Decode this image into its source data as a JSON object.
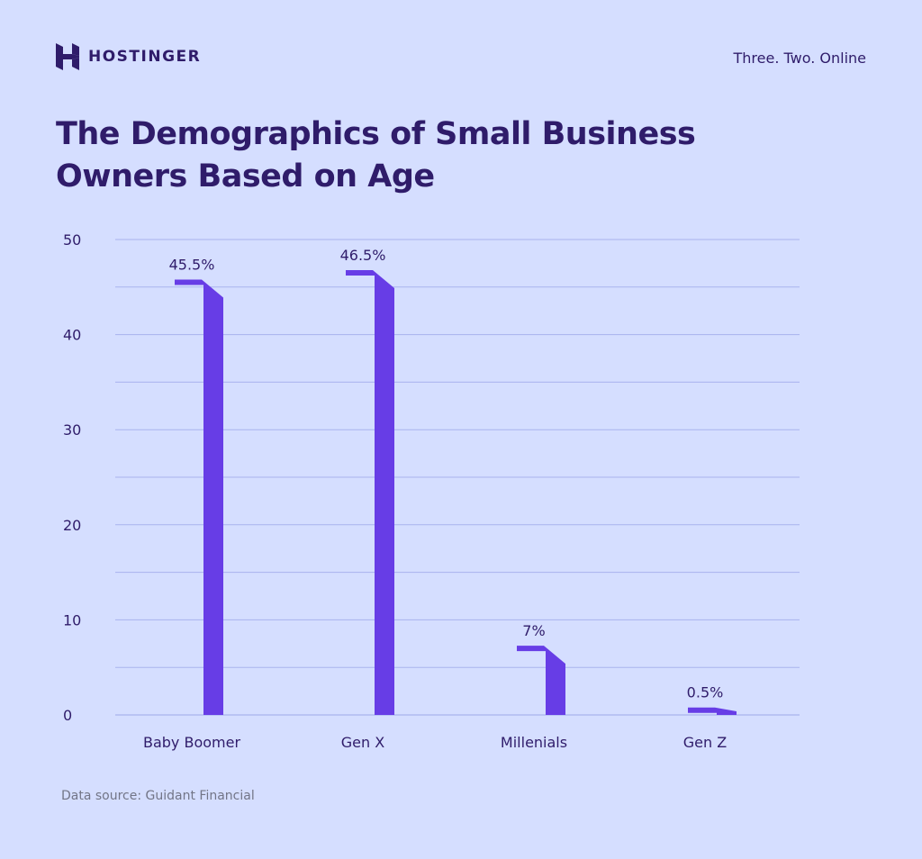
{
  "header": {
    "brand_name": "HOSTINGER",
    "tagline": "Three. Two. Online",
    "logo_icon": "hostinger-logo-icon"
  },
  "chart_data": {
    "type": "bar",
    "title": "The Demographics of Small Business Owners Based on Age",
    "categories": [
      "Baby Boomer",
      "Gen X",
      "Millenials",
      "Gen Z"
    ],
    "values": [
      45.5,
      46.5,
      7,
      0.5
    ],
    "value_labels": [
      "45.5%",
      "46.5%",
      "7%",
      "0.5%"
    ],
    "ylim": [
      0,
      50
    ],
    "yticks": [
      "0",
      "10",
      "20",
      "30",
      "40",
      "50"
    ],
    "xlabel": "",
    "ylabel": "",
    "grid": true,
    "legend": "none",
    "bar_color": "#673de6"
  },
  "footer": {
    "source": "Data source: Guidant Financial"
  },
  "colors": {
    "background": "#d5deff",
    "text": "#2f1c6a",
    "grid": "#a9b3ee",
    "bar": "#673de6"
  }
}
